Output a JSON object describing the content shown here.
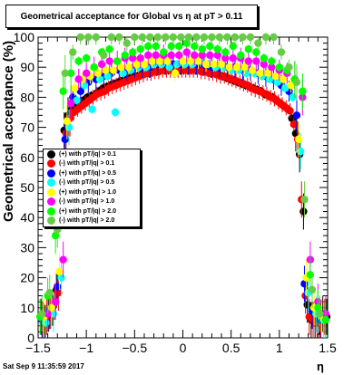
{
  "title": "Geometrical acceptance for Global vs   η at pT > 0.11",
  "timestamp": "Sat Sep  9 11:35:59 2017",
  "chart_data": {
    "type": "scatter",
    "xlabel": "η",
    "ylabel": "Geometrical acceptance (%)",
    "xlim": [
      -1.5,
      1.5
    ],
    "ylim": [
      0,
      100
    ],
    "x_ticks": [
      -1.5,
      -1,
      -0.5,
      0,
      0.5,
      1,
      1.5
    ],
    "x_tick_labels": [
      "−1.5",
      "−1",
      "−0.5",
      "0",
      "0.5",
      "1",
      "1.5"
    ],
    "y_ticks": [
      0,
      10,
      20,
      30,
      40,
      50,
      60,
      70,
      80,
      90,
      100
    ],
    "y_tick_labels": [
      "0",
      "10",
      "20",
      "30",
      "40",
      "50",
      "60",
      "70",
      "80",
      "90",
      "100"
    ],
    "grid": false,
    "legend_position": "middle-left",
    "series": [
      {
        "name": "(+) with pT/|q| > 0.1",
        "color": "#000000",
        "x": [
          -1.47,
          -1.43,
          -1.39,
          -1.35,
          -1.31,
          -1.27,
          -1.23,
          -1.19,
          -1.15,
          -1.11,
          -1.07,
          -1.03,
          -0.99,
          -0.95,
          -0.91,
          -0.87,
          -0.83,
          -0.79,
          -0.75,
          -0.71,
          -0.67,
          -0.63,
          -0.59,
          -0.55,
          -0.51,
          -0.47,
          -0.43,
          -0.39,
          -0.35,
          -0.31,
          -0.27,
          -0.23,
          -0.19,
          -0.15,
          -0.11,
          -0.07,
          -0.03,
          0.01,
          0.05,
          0.09,
          0.13,
          0.17,
          0.21,
          0.25,
          0.29,
          0.33,
          0.37,
          0.41,
          0.45,
          0.49,
          0.53,
          0.57,
          0.61,
          0.65,
          0.69,
          0.73,
          0.77,
          0.81,
          0.85,
          0.89,
          0.93,
          0.97,
          1.01,
          1.05,
          1.09,
          1.13,
          1.17,
          1.21,
          1.25,
          1.29,
          1.33,
          1.37,
          1.41,
          1.45,
          1.49
        ],
        "y": [
          7,
          5,
          8,
          10,
          16,
          46,
          69,
          74,
          76,
          77,
          78,
          79,
          80,
          80.5,
          81,
          82,
          83,
          83.5,
          84,
          84.5,
          85,
          85.5,
          86,
          86.5,
          87,
          87,
          87.5,
          88,
          88,
          88.5,
          88.5,
          89,
          89,
          89,
          89,
          89,
          89,
          89,
          89,
          89,
          89,
          89,
          88.5,
          88.5,
          88,
          88,
          87.5,
          87,
          86.5,
          86,
          85.5,
          85,
          84.5,
          84,
          83.5,
          83,
          82.5,
          82,
          81,
          80.5,
          80,
          79,
          78,
          77,
          76,
          73,
          68,
          61,
          42,
          11,
          6,
          5,
          7,
          8,
          7
        ]
      },
      {
        "name": "(-) with pT/|q| > 0.1",
        "color": "#ff0000",
        "x": [
          -1.45,
          -1.41,
          -1.37,
          -1.33,
          -1.29,
          -1.25,
          -1.21,
          -1.17,
          -1.13,
          -1.09,
          -1.05,
          -1.01,
          -0.97,
          -0.93,
          -0.89,
          -0.85,
          -0.81,
          -0.77,
          -0.73,
          -0.69,
          -0.65,
          -0.61,
          -0.57,
          -0.53,
          -0.49,
          -0.45,
          -0.41,
          -0.37,
          -0.33,
          -0.29,
          -0.25,
          -0.21,
          -0.17,
          -0.13,
          -0.09,
          -0.05,
          -0.01,
          0.03,
          0.07,
          0.11,
          0.15,
          0.19,
          0.23,
          0.27,
          0.31,
          0.35,
          0.39,
          0.43,
          0.47,
          0.51,
          0.55,
          0.59,
          0.63,
          0.67,
          0.71,
          0.75,
          0.79,
          0.83,
          0.87,
          0.91,
          0.95,
          0.99,
          1.03,
          1.07,
          1.11,
          1.15,
          1.19,
          1.23,
          1.27,
          1.31,
          1.35,
          1.39,
          1.43,
          1.47
        ],
        "y": [
          6,
          7,
          9,
          12,
          15,
          44,
          68,
          73,
          75,
          76,
          77,
          78,
          79,
          80,
          81,
          81.5,
          82,
          83,
          83.5,
          84,
          84.5,
          85,
          85.5,
          86,
          86.5,
          87,
          87.5,
          88,
          88,
          88.5,
          88.5,
          89,
          89,
          89,
          89,
          89,
          89,
          89,
          89,
          89,
          89,
          88.5,
          88.5,
          88,
          88,
          87.5,
          87,
          87,
          86.5,
          86,
          85.5,
          85,
          84.5,
          84,
          83,
          82.5,
          82,
          81.5,
          81,
          80,
          79.5,
          78.5,
          77.5,
          76.5,
          75.5,
          71,
          66,
          46,
          14,
          7,
          6,
          5,
          6,
          7
        ]
      },
      {
        "name": "(+) with pT/|q| > 0.5",
        "color": "#0000ff",
        "x": [
          -1.46,
          -1.38,
          -1.3,
          -1.22,
          -1.14,
          -1.06,
          -0.98,
          -0.9,
          -0.82,
          -0.74,
          -0.66,
          -0.58,
          -0.5,
          -0.42,
          -0.34,
          -0.26,
          -0.18,
          -0.1,
          -0.02,
          0.06,
          0.14,
          0.22,
          0.3,
          0.38,
          0.46,
          0.54,
          0.62,
          0.7,
          0.78,
          0.86,
          0.94,
          1.02,
          1.1,
          1.18,
          1.26,
          1.34,
          1.42
        ],
        "y": [
          6,
          9,
          17,
          66,
          80,
          82,
          85,
          86,
          87,
          88,
          89,
          89,
          90,
          90,
          90,
          91,
          91,
          91,
          91,
          91,
          91,
          91,
          90,
          90,
          90,
          90,
          89,
          89,
          88,
          87,
          86,
          84,
          82,
          74,
          18,
          9,
          6
        ]
      },
      {
        "name": "(-) with pT/|q| > 0.5",
        "color": "#00ffff",
        "x": [
          -1.42,
          -1.34,
          -1.26,
          -1.18,
          -1.1,
          -1.02,
          -0.94,
          -0.86,
          -0.78,
          -0.7,
          -0.62,
          -0.54,
          -0.46,
          -0.38,
          -0.3,
          -0.22,
          -0.14,
          -0.06,
          0.02,
          0.1,
          0.18,
          0.26,
          0.34,
          0.42,
          0.5,
          0.58,
          0.66,
          0.74,
          0.82,
          0.9,
          0.98,
          1.06,
          1.14,
          1.22,
          1.3,
          1.38,
          1.46
        ],
        "y": [
          5,
          8,
          20,
          70,
          79,
          84,
          76,
          86,
          87,
          75,
          88,
          89,
          90,
          90,
          91,
          91,
          90,
          91,
          91,
          91,
          92,
          91,
          90,
          90,
          89,
          89,
          88,
          88,
          87,
          86,
          85,
          83,
          80,
          62,
          15,
          8,
          6
        ]
      },
      {
        "name": "(+) with pT/|q| > 1.0",
        "color": "#ffff00",
        "x": [
          -1.44,
          -1.36,
          -1.28,
          -1.2,
          -1.12,
          -1.04,
          -0.96,
          -0.88,
          -0.8,
          -0.72,
          -0.64,
          -0.56,
          -0.48,
          -0.4,
          -0.32,
          -0.24,
          -0.16,
          -0.08,
          0.0,
          0.08,
          0.16,
          0.24,
          0.32,
          0.4,
          0.48,
          0.56,
          0.64,
          0.72,
          0.8,
          0.88,
          0.96,
          1.04,
          1.12,
          1.2,
          1.28,
          1.36,
          1.44
        ],
        "y": [
          7,
          10,
          22,
          72,
          83,
          86,
          87,
          88,
          89,
          89,
          90,
          90,
          91,
          91,
          92,
          92,
          92,
          88,
          92,
          92,
          92,
          91,
          91,
          91,
          90,
          90,
          90,
          89,
          88,
          88,
          87,
          86,
          84,
          66,
          20,
          10,
          7
        ]
      },
      {
        "name": "(-) with pT/|q| > 1.0",
        "color": "#ff00ff",
        "x": [
          -1.4,
          -1.32,
          -1.24,
          -1.16,
          -1.08,
          -1.0,
          -0.92,
          -0.84,
          -0.76,
          -0.68,
          -0.6,
          -0.52,
          -0.44,
          -0.36,
          -0.28,
          -0.2,
          -0.12,
          -0.04,
          0.04,
          0.12,
          0.2,
          0.28,
          0.36,
          0.44,
          0.52,
          0.6,
          0.68,
          0.76,
          0.84,
          0.92,
          1.0,
          1.08,
          1.16,
          1.24,
          1.32,
          1.4,
          1.48
        ],
        "y": [
          8,
          12,
          26,
          78,
          86,
          88,
          90,
          91,
          92,
          92,
          93,
          93,
          93,
          94,
          94,
          94,
          94,
          94,
          95,
          94,
          94,
          94,
          94,
          93,
          93,
          93,
          92,
          92,
          91,
          90,
          89,
          88,
          86,
          80,
          26,
          12,
          8
        ]
      },
      {
        "name": "(+) with pT/|q| > 2.0",
        "color": "#00ff00",
        "x": [
          -1.48,
          -1.4,
          -1.32,
          -1.24,
          -1.16,
          -1.08,
          -1.0,
          -0.92,
          -0.84,
          -0.76,
          -0.68,
          -0.6,
          -0.52,
          -0.44,
          -0.36,
          -0.28,
          -0.2,
          -0.12,
          -0.04,
          0.04,
          0.12,
          0.2,
          0.28,
          0.36,
          0.44,
          0.52,
          0.6,
          0.68,
          0.76,
          0.84,
          0.92,
          1.0,
          1.08,
          1.16,
          1.24,
          1.32,
          1.4,
          1.48
        ],
        "y": [
          7,
          14,
          34,
          82,
          88,
          92,
          93,
          90,
          95,
          96,
          92,
          94,
          95,
          96,
          97,
          97,
          95,
          97,
          97,
          98,
          97,
          96,
          97,
          96,
          95,
          97,
          94,
          96,
          95,
          93,
          92,
          90,
          89,
          86,
          82,
          21,
          10,
          6
        ]
      },
      {
        "name": "(-) with pT/|q| > 2.0",
        "color": "#66cc44",
        "x": [
          -1.46,
          -1.38,
          -1.3,
          -1.22,
          -1.14,
          -1.06,
          -0.98,
          -0.9,
          -0.82,
          -0.74,
          -0.66,
          -0.58,
          -0.5,
          -0.42,
          -0.34,
          -0.26,
          -0.18,
          -0.1,
          -0.02,
          0.06,
          0.14,
          0.22,
          0.3,
          0.38,
          0.46,
          0.54,
          0.62,
          0.7,
          0.78,
          0.86,
          0.94,
          1.02,
          1.1,
          1.18,
          1.26,
          1.34,
          1.42
        ],
        "y": [
          8,
          15,
          36,
          88,
          95,
          100,
          100,
          100,
          94,
          100,
          100,
          98,
          100,
          100,
          100,
          100,
          100,
          100,
          100,
          100,
          100,
          100,
          100,
          100,
          100,
          100,
          100,
          100,
          98,
          100,
          100,
          95,
          90,
          85,
          46,
          16,
          8
        ]
      }
    ]
  }
}
